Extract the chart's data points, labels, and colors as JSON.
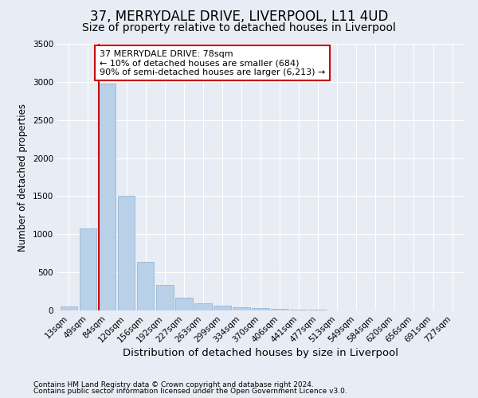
{
  "title1": "37, MERRYDALE DRIVE, LIVERPOOL, L11 4UD",
  "title2": "Size of property relative to detached houses in Liverpool",
  "xlabel": "Distribution of detached houses by size in Liverpool",
  "ylabel": "Number of detached properties",
  "categories": [
    "13sqm",
    "49sqm",
    "84sqm",
    "120sqm",
    "156sqm",
    "192sqm",
    "227sqm",
    "263sqm",
    "299sqm",
    "334sqm",
    "370sqm",
    "406sqm",
    "441sqm",
    "477sqm",
    "513sqm",
    "549sqm",
    "584sqm",
    "620sqm",
    "656sqm",
    "691sqm",
    "727sqm"
  ],
  "values": [
    50,
    1080,
    2980,
    1500,
    640,
    330,
    170,
    90,
    65,
    45,
    30,
    20,
    15,
    8,
    5,
    4,
    3,
    2,
    1,
    1,
    0
  ],
  "bar_color": "#b8d0e8",
  "bar_edge_color": "#8ab0d0",
  "property_line_color": "#cc0000",
  "annotation_text": "37 MERRYDALE DRIVE: 78sqm\n← 10% of detached houses are smaller (684)\n90% of semi-detached houses are larger (6,213) →",
  "annotation_box_facecolor": "#ffffff",
  "annotation_box_edgecolor": "#cc0000",
  "ylim": [
    0,
    3500
  ],
  "yticks": [
    0,
    500,
    1000,
    1500,
    2000,
    2500,
    3000,
    3500
  ],
  "bg_color": "#e8edf5",
  "plot_bg_color": "#e8edf5",
  "grid_color": "#ffffff",
  "footer_line1": "Contains HM Land Registry data © Crown copyright and database right 2024.",
  "footer_line2": "Contains public sector information licensed under the Open Government Licence v3.0.",
  "title1_fontsize": 12,
  "title2_fontsize": 10,
  "xlabel_fontsize": 9.5,
  "ylabel_fontsize": 8.5,
  "tick_fontsize": 7.5,
  "annotation_fontsize": 8,
  "footer_fontsize": 6.5
}
